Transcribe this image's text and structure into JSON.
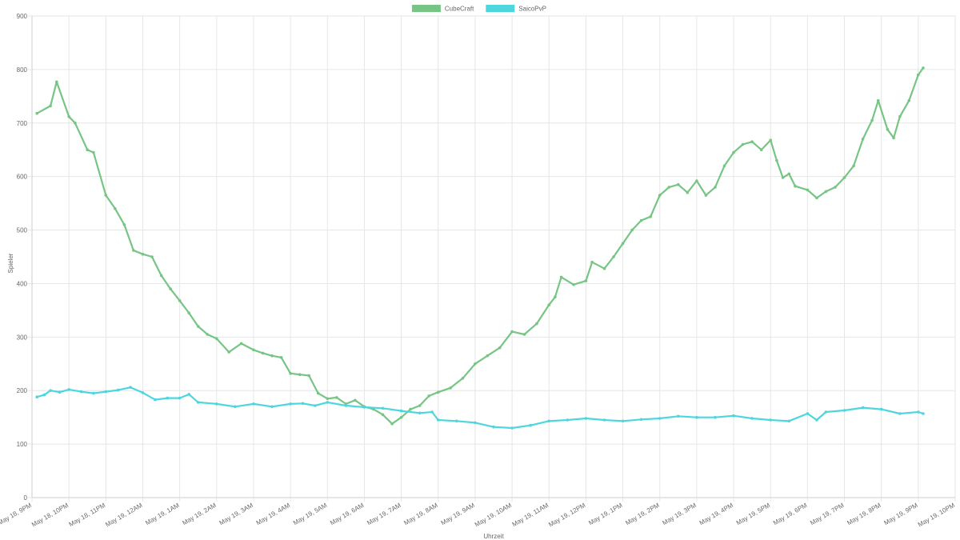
{
  "chart_data": {
    "type": "line",
    "xlabel": "Uhrzeit",
    "ylabel": "Spieler",
    "ylim": [
      0,
      900
    ],
    "yticks": [
      0,
      100,
      200,
      300,
      400,
      500,
      600,
      700,
      800,
      900
    ],
    "x_ticks": [
      "May 18, 9PM",
      "May 18, 10PM",
      "May 18, 11PM",
      "May 19, 12AM",
      "May 19, 1AM",
      "May 19, 2AM",
      "May 19, 3AM",
      "May 19, 4AM",
      "May 19, 5AM",
      "May 19, 6AM",
      "May 19, 7AM",
      "May 19, 8AM",
      "May 19, 9AM",
      "May 19, 10AM",
      "May 19, 11AM",
      "May 19, 12PM",
      "May 19, 1PM",
      "May 19, 2PM",
      "May 19, 3PM",
      "May 19, 4PM",
      "May 19, 5PM",
      "May 19, 6PM",
      "May 19, 7PM",
      "May 19, 8PM",
      "May 19, 9PM",
      "May 19, 10PM"
    ],
    "xlim": [
      "May 18, 9PM",
      "May 19, 10PM"
    ],
    "grid": true,
    "legend_position": "top",
    "series": [
      {
        "name": "CubeCraft",
        "color": "#77c584",
        "x": [
          "May 18, 9:08PM",
          "May 18, 9:30PM",
          "May 18, 9:40PM",
          "May 18, 10:00PM",
          "May 18, 10:10PM",
          "May 18, 10:30PM",
          "May 18, 10:40PM",
          "May 18, 11:00PM",
          "May 18, 11:15PM",
          "May 18, 11:30PM",
          "May 18, 11:45PM",
          "May 19, 12:00AM",
          "May 19, 12:15AM",
          "May 19, 12:30AM",
          "May 19, 12:45AM",
          "May 19, 1:00AM",
          "May 19, 1:15AM",
          "May 19, 1:30AM",
          "May 19, 1:45AM",
          "May 19, 2:00AM",
          "May 19, 2:20AM",
          "May 19, 2:40AM",
          "May 19, 3:00AM",
          "May 19, 3:15AM",
          "May 19, 3:30AM",
          "May 19, 3:45AM",
          "May 19, 4:00AM",
          "May 19, 4:15AM",
          "May 19, 4:30AM",
          "May 19, 4:45AM",
          "May 19, 5:00AM",
          "May 19, 5:15AM",
          "May 19, 5:30AM",
          "May 19, 5:45AM",
          "May 19, 6:00AM",
          "May 19, 6:15AM",
          "May 19, 6:30AM",
          "May 19, 6:45AM",
          "May 19, 7:00AM",
          "May 19, 7:15AM",
          "May 19, 7:30AM",
          "May 19, 7:45AM",
          "May 19, 8:00AM",
          "May 19, 8:20AM",
          "May 19, 8:40AM",
          "May 19, 9:00AM",
          "May 19, 9:20AM",
          "May 19, 9:40AM",
          "May 19, 10:00AM",
          "May 19, 10:20AM",
          "May 19, 10:40AM",
          "May 19, 11:00AM",
          "May 19, 11:10AM",
          "May 19, 11:20AM",
          "May 19, 11:40AM",
          "May 19, 12:00PM",
          "May 19, 12:10PM",
          "May 19, 12:30PM",
          "May 19, 12:45PM",
          "May 19, 1:00PM",
          "May 19, 1:15PM",
          "May 19, 1:30PM",
          "May 19, 1:45PM",
          "May 19, 2:00PM",
          "May 19, 2:15PM",
          "May 19, 2:30PM",
          "May 19, 2:45PM",
          "May 19, 3:00PM",
          "May 19, 3:15PM",
          "May 19, 3:30PM",
          "May 19, 3:45PM",
          "May 19, 4:00PM",
          "May 19, 4:15PM",
          "May 19, 4:30PM",
          "May 19, 4:45PM",
          "May 19, 5:00PM",
          "May 19, 5:10PM",
          "May 19, 5:20PM",
          "May 19, 5:30PM",
          "May 19, 5:40PM",
          "May 19, 6:00PM",
          "May 19, 6:15PM",
          "May 19, 6:30PM",
          "May 19, 6:45PM",
          "May 19, 7:00PM",
          "May 19, 7:15PM",
          "May 19, 7:30PM",
          "May 19, 7:45PM",
          "May 19, 7:55PM",
          "May 19, 8:10PM",
          "May 19, 8:20PM",
          "May 19, 8:30PM",
          "May 19, 8:45PM",
          "May 19, 9:00PM",
          "May 19, 9:08PM"
        ],
        "values": [
          718,
          732,
          777,
          712,
          700,
          650,
          645,
          565,
          540,
          510,
          462,
          455,
          450,
          415,
          390,
          368,
          345,
          320,
          305,
          297,
          272,
          288,
          276,
          270,
          265,
          262,
          232,
          230,
          228,
          195,
          185,
          187,
          175,
          182,
          170,
          165,
          155,
          138,
          150,
          165,
          172,
          190,
          197,
          205,
          223,
          250,
          265,
          280,
          310,
          305,
          325,
          360,
          375,
          412,
          398,
          405,
          440,
          428,
          450,
          475,
          500,
          518,
          525,
          565,
          580,
          585,
          570,
          592,
          565,
          580,
          620,
          645,
          660,
          665,
          650,
          668,
          630,
          598,
          605,
          582,
          575,
          560,
          572,
          580,
          598,
          620,
          670,
          705,
          742,
          688,
          672,
          712,
          742,
          790,
          803
        ]
      },
      {
        "name": "SaicoPvP",
        "color": "#4ed6de",
        "x": [
          "May 18, 9:08PM",
          "May 18, 9:20PM",
          "May 18, 9:30PM",
          "May 18, 9:45PM",
          "May 18, 10:00PM",
          "May 18, 10:20PM",
          "May 18, 10:40PM",
          "May 18, 11:00PM",
          "May 18, 11:20PM",
          "May 18, 11:40PM",
          "May 19, 12:00AM",
          "May 19, 12:20AM",
          "May 19, 12:40AM",
          "May 19, 1:00AM",
          "May 19, 1:15AM",
          "May 19, 1:30AM",
          "May 19, 2:00AM",
          "May 19, 2:30AM",
          "May 19, 3:00AM",
          "May 19, 3:30AM",
          "May 19, 4:00AM",
          "May 19, 4:20AM",
          "May 19, 4:40AM",
          "May 19, 5:00AM",
          "May 19, 5:30AM",
          "May 19, 6:00AM",
          "May 19, 6:30AM",
          "May 19, 7:00AM",
          "May 19, 7:30AM",
          "May 19, 7:50AM",
          "May 19, 8:00AM",
          "May 19, 8:30AM",
          "May 19, 9:00AM",
          "May 19, 9:30AM",
          "May 19, 10:00AM",
          "May 19, 10:30AM",
          "May 19, 11:00AM",
          "May 19, 11:30AM",
          "May 19, 12:00PM",
          "May 19, 12:30PM",
          "May 19, 1:00PM",
          "May 19, 1:30PM",
          "May 19, 2:00PM",
          "May 19, 2:30PM",
          "May 19, 3:00PM",
          "May 19, 3:30PM",
          "May 19, 4:00PM",
          "May 19, 4:30PM",
          "May 19, 5:00PM",
          "May 19, 5:30PM",
          "May 19, 6:00PM",
          "May 19, 6:15PM",
          "May 19, 6:30PM",
          "May 19, 7:00PM",
          "May 19, 7:30PM",
          "May 19, 8:00PM",
          "May 19, 8:30PM",
          "May 19, 9:00PM",
          "May 19, 9:08PM"
        ],
        "values": [
          188,
          192,
          200,
          197,
          202,
          198,
          195,
          198,
          201,
          206,
          196,
          183,
          186,
          186,
          193,
          178,
          175,
          170,
          175,
          170,
          175,
          176,
          172,
          178,
          172,
          169,
          167,
          162,
          158,
          160,
          145,
          143,
          140,
          132,
          130,
          135,
          143,
          145,
          148,
          145,
          143,
          146,
          148,
          152,
          150,
          150,
          153,
          148,
          145,
          143,
          157,
          145,
          160,
          163,
          168,
          165,
          157,
          160,
          157
        ]
      }
    ]
  }
}
